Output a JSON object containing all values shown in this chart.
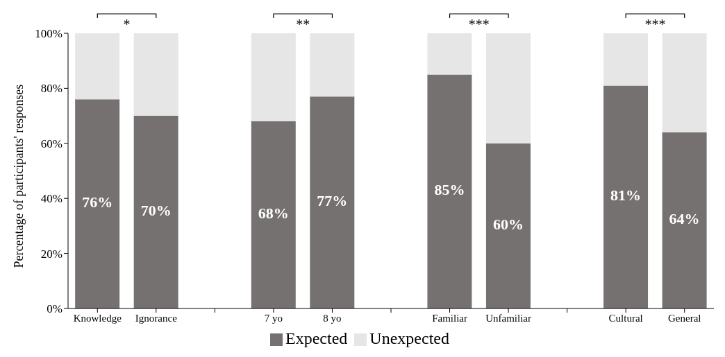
{
  "chart_data": {
    "type": "bar",
    "stacked": true,
    "ylabel": "Percentage of participants' responses",
    "categories": [
      "Knowledge",
      "Ignorance",
      null,
      "7 yo",
      "8 yo",
      null,
      "Familiar",
      "Unfamiliar",
      null,
      "Cultural",
      "General"
    ],
    "series": [
      {
        "name": "Expected",
        "color": "#767171",
        "values": [
          76,
          70,
          null,
          68,
          77,
          null,
          85,
          60,
          null,
          81,
          64
        ],
        "value_labels": [
          "76%",
          "70%",
          null,
          "68%",
          "77%",
          null,
          "85%",
          "60%",
          null,
          "81%",
          "64%"
        ]
      },
      {
        "name": "Unexpected",
        "color": "#e7e6e6",
        "values": [
          24,
          30,
          null,
          32,
          23,
          null,
          15,
          40,
          null,
          19,
          36
        ]
      }
    ],
    "ylim": [
      0,
      100
    ],
    "yticks": [
      {
        "value": 0,
        "label": "0%"
      },
      {
        "value": 20,
        "label": "20%"
      },
      {
        "value": 40,
        "label": "40%"
      },
      {
        "value": 60,
        "label": "60%"
      },
      {
        "value": 80,
        "label": "80%"
      },
      {
        "value": 100,
        "label": "100%"
      }
    ],
    "grid": false,
    "legend": "bottom",
    "annotations": [
      "*",
      "**",
      "***",
      "***"
    ]
  }
}
